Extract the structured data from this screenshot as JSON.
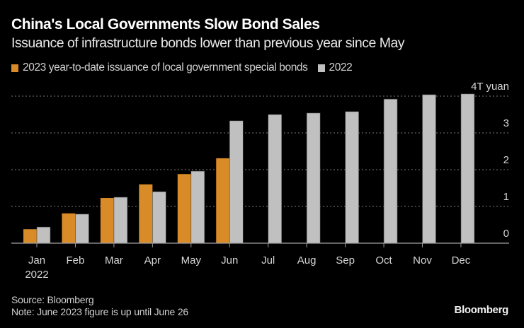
{
  "header": {
    "title": "China's Local Governments Slow Bond Sales",
    "subtitle": "Issuance of infrastructure bonds lower than previous year since May"
  },
  "footer": {
    "source": "Source: Bloomberg",
    "note": "Note: June 2023 figure is up until June 26",
    "brand": "Bloomberg"
  },
  "chart_data": {
    "type": "bar",
    "title": "China's Local Governments Slow Bond Sales",
    "subtitle": "Issuance of infrastructure bonds lower than previous year since May",
    "xlabel": "",
    "ylabel": "T yuan",
    "y_unit_label": "4T yuan",
    "ylim": [
      0,
      4
    ],
    "yticks": [
      0,
      1,
      2,
      3,
      4
    ],
    "ytick_labels": [
      "0",
      "1",
      "2",
      "3",
      "4T yuan"
    ],
    "y_axis_side": "right",
    "grid": true,
    "legend_position": "top-left",
    "categories": [
      "Jan",
      "Feb",
      "Mar",
      "Apr",
      "May",
      "Jun",
      "Jul",
      "Aug",
      "Sep",
      "Oct",
      "Nov",
      "Dec"
    ],
    "category_sublabels": [
      "2022",
      "",
      "",
      "",
      "",
      "",
      "",
      "",
      "",
      "",
      "",
      ""
    ],
    "series": [
      {
        "name": "2023 year-to-date issuance of local government special bonds",
        "color": "#d98b28",
        "values": [
          0.38,
          0.81,
          1.23,
          1.6,
          1.88,
          2.31,
          null,
          null,
          null,
          null,
          null,
          null
        ]
      },
      {
        "name": "2022",
        "color": "#c0c0c0",
        "values": [
          0.44,
          0.79,
          1.25,
          1.4,
          1.96,
          3.33,
          3.5,
          3.54,
          3.58,
          3.92,
          4.04,
          4.06
        ]
      }
    ]
  }
}
